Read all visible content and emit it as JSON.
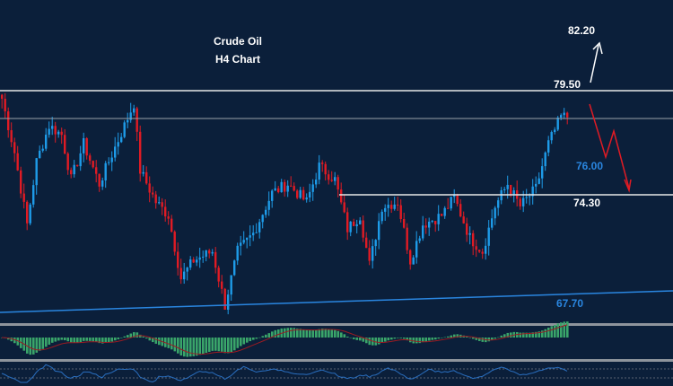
{
  "title": "Crude Oil",
  "subtitle": "H4 Chart",
  "colors": {
    "background": "#0b1f3a",
    "up": "#1e9be8",
    "down": "#e01b24",
    "macd_hist": "#3aa56a",
    "signal": "#9b1b22",
    "rsi": "#2a6fc0",
    "trendline": "#2a86e0"
  },
  "chart_data": {
    "type": "candlestick",
    "title": "Crude Oil H4 Chart",
    "bar_count": 181,
    "close_waypoints": [
      [
        0,
        79.1
      ],
      [
        4,
        76.41
      ],
      [
        8,
        72.82
      ],
      [
        11,
        75.96
      ],
      [
        15,
        77.75
      ],
      [
        19,
        77.3
      ],
      [
        22,
        75.06
      ],
      [
        26,
        76.85
      ],
      [
        31,
        74.84
      ],
      [
        34,
        75.96
      ],
      [
        39,
        77.75
      ],
      [
        42,
        78.87
      ],
      [
        44,
        75.51
      ],
      [
        49,
        73.94
      ],
      [
        53,
        73.27
      ],
      [
        57,
        70.13
      ],
      [
        61,
        71.02
      ],
      [
        67,
        71.47
      ],
      [
        71,
        68.78
      ],
      [
        75,
        71.47
      ],
      [
        80,
        72.37
      ],
      [
        86,
        74.39
      ],
      [
        91,
        74.84
      ],
      [
        97,
        73.94
      ],
      [
        101,
        75.73
      ],
      [
        106,
        75.06
      ],
      [
        110,
        72.59
      ],
      [
        114,
        73.27
      ],
      [
        117,
        70.8
      ],
      [
        121,
        73.72
      ],
      [
        126,
        73.94
      ],
      [
        130,
        71.02
      ],
      [
        134,
        72.82
      ],
      [
        140,
        73.27
      ],
      [
        144,
        74.16
      ],
      [
        149,
        72.15
      ],
      [
        153,
        71.47
      ],
      [
        157,
        73.72
      ],
      [
        161,
        74.84
      ],
      [
        165,
        73.72
      ],
      [
        170,
        74.61
      ],
      [
        174,
        76.85
      ],
      [
        178,
        78.2
      ],
      [
        180,
        78.2
      ]
    ],
    "levels": [
      {
        "label": "82.20",
        "price": 82.2,
        "color": "#ffffff"
      },
      {
        "label": "79.50",
        "price": 79.5,
        "color": "#ffffff"
      },
      {
        "label": "76.00",
        "price": 76.0,
        "color": "#2a86e0"
      },
      {
        "label": "74.30",
        "price": 74.3,
        "color": "#ffffff"
      },
      {
        "label": "67.70",
        "price": 67.7,
        "color": "#2a86e0"
      }
    ],
    "indicators": [
      "MACD",
      "RSI"
    ]
  }
}
